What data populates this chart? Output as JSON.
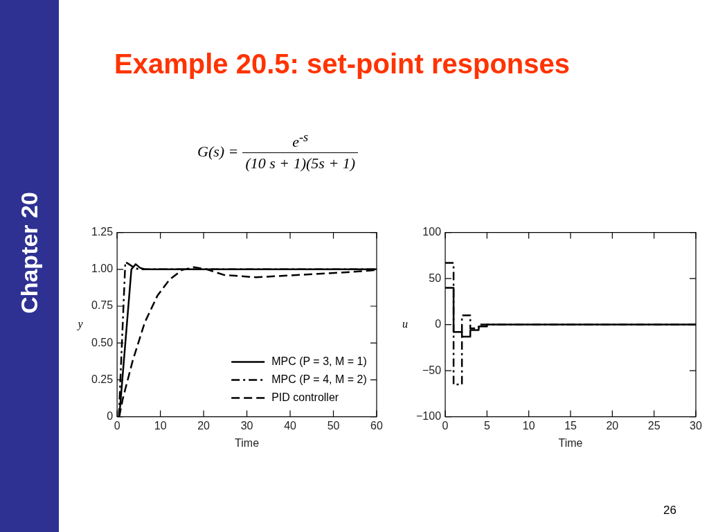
{
  "chart_data": [
    {
      "type": "line",
      "title": "Example 20.5: set-point responses",
      "annotations": [
        "G(s) =",
        "e$^{-s}$",
        "(10 s + 1)(5s + 1)",
        "Chapter 20",
        "26"
      ],
      "xlabel": "Time",
      "ylabel": "y",
      "xlim": [
        0,
        60
      ],
      "xticks": [
        0,
        10,
        20,
        30,
        40,
        50,
        60
      ],
      "ylim": [
        0,
        1.25
      ],
      "yticks": [
        0,
        0.25,
        {
          "value": 0.5,
          "label": "0.50"
        },
        0.75,
        {
          "value": 1,
          "label": "1.00"
        },
        1.25
      ],
      "legend": "bottom right",
      "series": [
        {
          "name": "MPC (P = 3, M = 1)",
          "color": "#000000",
          "line_style": "solid",
          "x": [
            0.5,
            3.3,
            4.3,
            5.3,
            6.4,
            60
          ],
          "values": [
            0,
            1.0,
            1.035,
            1.01,
            1.0,
            1.0
          ]
        },
        {
          "name": "MPC (P = 4, M = 2)",
          "color": "#000000",
          "line_style": "dashdot",
          "x": [
            0.4,
            1.9,
            3.0,
            4.0,
            5.0,
            60
          ],
          "values": [
            0,
            1.05,
            1.03,
            1.01,
            1.0,
            1.0
          ]
        },
        {
          "name": "PID controller",
          "color": "#000000",
          "line_style": "dashed",
          "x": [
            0.5,
            1.3,
            3.6,
            6.4,
            9.3,
            12.1,
            15.0,
            17.8,
            20.7,
            24.7,
            32.1,
            44.6,
            53.2,
            60
          ],
          "values": [
            0,
            0.12,
            0.38,
            0.64,
            0.82,
            0.93,
            0.995,
            1.015,
            1.0,
            0.962,
            0.946,
            0.966,
            0.98,
            0.995
          ]
        }
      ]
    },
    {
      "type": "step",
      "xlabel": "Time",
      "ylabel": "u",
      "xlim": [
        0,
        30
      ],
      "xticks": [
        0,
        5,
        10,
        15,
        20,
        25,
        30
      ],
      "ylim": [
        -100,
        100
      ],
      "yticks": [
        {
          "value": -100,
          "label": "−100"
        },
        {
          "value": -50,
          "label": "−50"
        },
        0,
        50,
        100
      ],
      "series": [
        {
          "color": "#000000",
          "line_style": "dashdot",
          "x": [
            0,
            1,
            2,
            3,
            4,
            30
          ],
          "values": [
            67,
            -65,
            10,
            -4,
            0,
            0
          ]
        },
        {
          "color": "#000000",
          "line_style": "solid",
          "x": [
            0,
            1,
            2,
            3,
            4,
            5,
            30
          ],
          "values": [
            40,
            -8,
            -13,
            -6,
            -2,
            0,
            0
          ]
        }
      ]
    }
  ]
}
